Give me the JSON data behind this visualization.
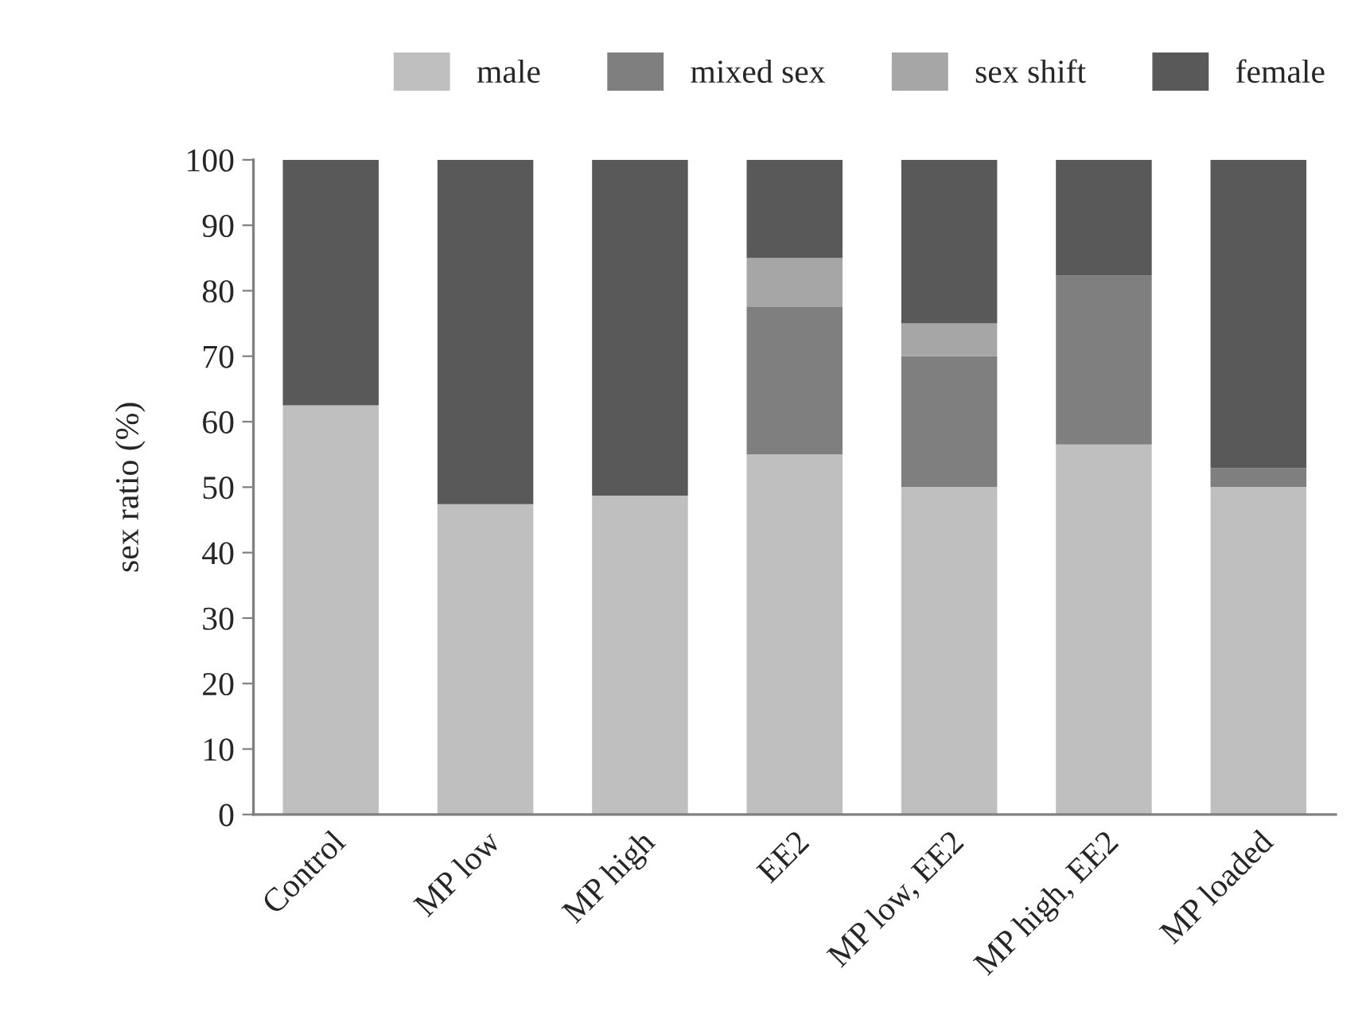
{
  "chart_data": {
    "type": "bar",
    "stacked": true,
    "ylabel": "sex ratio (%)",
    "categories": [
      "Control",
      "MP low",
      "MP high",
      "EE2",
      "MP low, EE2",
      "MP high, EE2",
      "MP loaded"
    ],
    "series": [
      {
        "name": "male",
        "color": "#bfbfbf",
        "values": [
          62.5,
          47.4,
          48.7,
          55,
          50,
          56.5,
          50
        ]
      },
      {
        "name": "mixed sex",
        "color": "#7f7f7f",
        "values": [
          0,
          0,
          0,
          22.5,
          20,
          25.8,
          2.9
        ]
      },
      {
        "name": "sex shift",
        "color": "#a6a6a6",
        "values": [
          0,
          0,
          0,
          7.5,
          5,
          0,
          0
        ]
      },
      {
        "name": "female",
        "color": "#595959",
        "values": [
          37.5,
          52.6,
          51.3,
          15,
          25,
          17.7,
          47.1
        ]
      }
    ],
    "ylim": [
      0,
      100
    ],
    "yticks": [
      0,
      10,
      20,
      30,
      40,
      50,
      60,
      70,
      80,
      90,
      100
    ],
    "grid": false,
    "legend": "top"
  }
}
